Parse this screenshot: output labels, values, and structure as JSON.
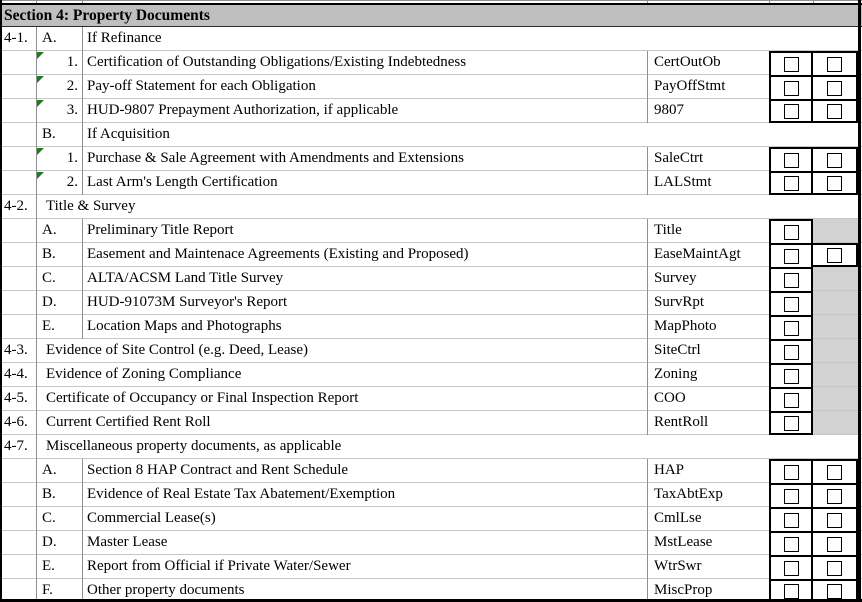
{
  "section_header": "Section 4: Property Documents",
  "colors": {
    "header_bg": "#bfbfbf",
    "shaded_cell": "#d2d2d2",
    "marker_green": "#1f7a1f",
    "grid_light": "#c6c6c6",
    "grid_dark": "#8f8f8f",
    "border_black": "#000000"
  },
  "columns": {
    "checkbox_col_count": 2,
    "checkbox_state_all": "unchecked"
  },
  "rows": [
    {
      "num": "4-1.",
      "label": "A.",
      "desc": "If Refinance",
      "code": "",
      "cb1": "none",
      "cb2": "none",
      "marker": false,
      "merged": false
    },
    {
      "item": "1.",
      "desc": "Certification of Outstanding Obligations/Existing Indebtedness",
      "code": "CertOutOb",
      "cb1": "box",
      "cb2": "box",
      "marker": true,
      "merged": false
    },
    {
      "item": "2.",
      "desc": "Pay-off Statement for each Obligation",
      "code": "PayOffStmt",
      "cb1": "box",
      "cb2": "box",
      "marker": true,
      "merged": false
    },
    {
      "item": "3.",
      "desc": "HUD-9807 Prepayment Authorization, if applicable",
      "code": "9807",
      "cb1": "box",
      "cb2": "box",
      "marker": true,
      "merged": false
    },
    {
      "label": "B.",
      "desc": "If Acquisition",
      "code": "",
      "cb1": "none",
      "cb2": "none",
      "marker": false,
      "merged": false
    },
    {
      "item": "1.",
      "desc": "Purchase & Sale Agreement with Amendments and Extensions",
      "code": "SaleCtrt",
      "cb1": "box",
      "cb2": "box",
      "marker": true,
      "merged": false
    },
    {
      "item": "2.",
      "desc": "Last Arm's Length Certification",
      "code": "LALStmt",
      "cb1": "box",
      "cb2": "box",
      "marker": true,
      "merged": false
    },
    {
      "num": "4-2.",
      "desc": "Title & Survey",
      "code": "",
      "cb1": "none",
      "cb2": "none",
      "marker": false,
      "merged": true
    },
    {
      "label": "A.",
      "desc": "Preliminary Title Report",
      "code": "Title",
      "cb1": "box",
      "cb2": "gray",
      "marker": false,
      "merged": false
    },
    {
      "label": "B.",
      "desc": "Easement and Maintenace Agreements (Existing and Proposed)",
      "code": "EaseMaintAgt",
      "cb1": "box",
      "cb2": "box",
      "marker": false,
      "merged": false
    },
    {
      "label": "C.",
      "desc": "ALTA/ACSM Land Title Survey",
      "code": "Survey",
      "cb1": "box",
      "cb2": "gray",
      "marker": false,
      "merged": false
    },
    {
      "label": "D.",
      "desc": "HUD-91073M Surveyor's Report",
      "code": "SurvRpt",
      "cb1": "box",
      "cb2": "gray",
      "marker": false,
      "merged": false
    },
    {
      "label": "E.",
      "desc": "Location Maps and Photographs",
      "code": "MapPhoto",
      "cb1": "box",
      "cb2": "gray",
      "marker": false,
      "merged": false
    },
    {
      "num": "4-3.",
      "desc": "Evidence of Site Control (e.g. Deed, Lease)",
      "code": "SiteCtrl",
      "cb1": "box",
      "cb2": "gray",
      "marker": false,
      "merged": true
    },
    {
      "num": "4-4.",
      "desc": "Evidence of Zoning Compliance",
      "code": "Zoning",
      "cb1": "box",
      "cb2": "gray",
      "marker": false,
      "merged": true
    },
    {
      "num": "4-5.",
      "desc": "Certificate of Occupancy or Final Inspection Report",
      "code": "COO",
      "cb1": "box",
      "cb2": "gray",
      "marker": false,
      "merged": true
    },
    {
      "num": "4-6.",
      "desc": "Current Certified Rent Roll",
      "code": "RentRoll",
      "cb1": "box",
      "cb2": "gray",
      "marker": false,
      "merged": true
    },
    {
      "num": "4-7.",
      "desc": "Miscellaneous property documents, as applicable",
      "code": "",
      "cb1": "none",
      "cb2": "none",
      "marker": false,
      "merged": true
    },
    {
      "label": "A.",
      "desc": "Section 8 HAP Contract and Rent Schedule",
      "code": "HAP",
      "cb1": "box",
      "cb2": "box",
      "marker": false,
      "merged": false
    },
    {
      "label": "B.",
      "desc": "Evidence of Real Estate Tax Abatement/Exemption",
      "code": "TaxAbtExp",
      "cb1": "box",
      "cb2": "box",
      "marker": false,
      "merged": false
    },
    {
      "label": "C.",
      "desc": "Commercial Lease(s)",
      "code": "CmlLse",
      "cb1": "box",
      "cb2": "box",
      "marker": false,
      "merged": false
    },
    {
      "label": "D.",
      "desc": "Master Lease",
      "code": "MstLease",
      "cb1": "box",
      "cb2": "box",
      "marker": false,
      "merged": false
    },
    {
      "label": "E.",
      "desc": "Report from Official if Private Water/Sewer",
      "code": "WtrSwr",
      "cb1": "box",
      "cb2": "box",
      "marker": false,
      "merged": false
    },
    {
      "label": "F.",
      "desc": "Other property documents",
      "code": "MiscProp",
      "cb1": "box",
      "cb2": "box",
      "marker": false,
      "merged": false
    }
  ]
}
